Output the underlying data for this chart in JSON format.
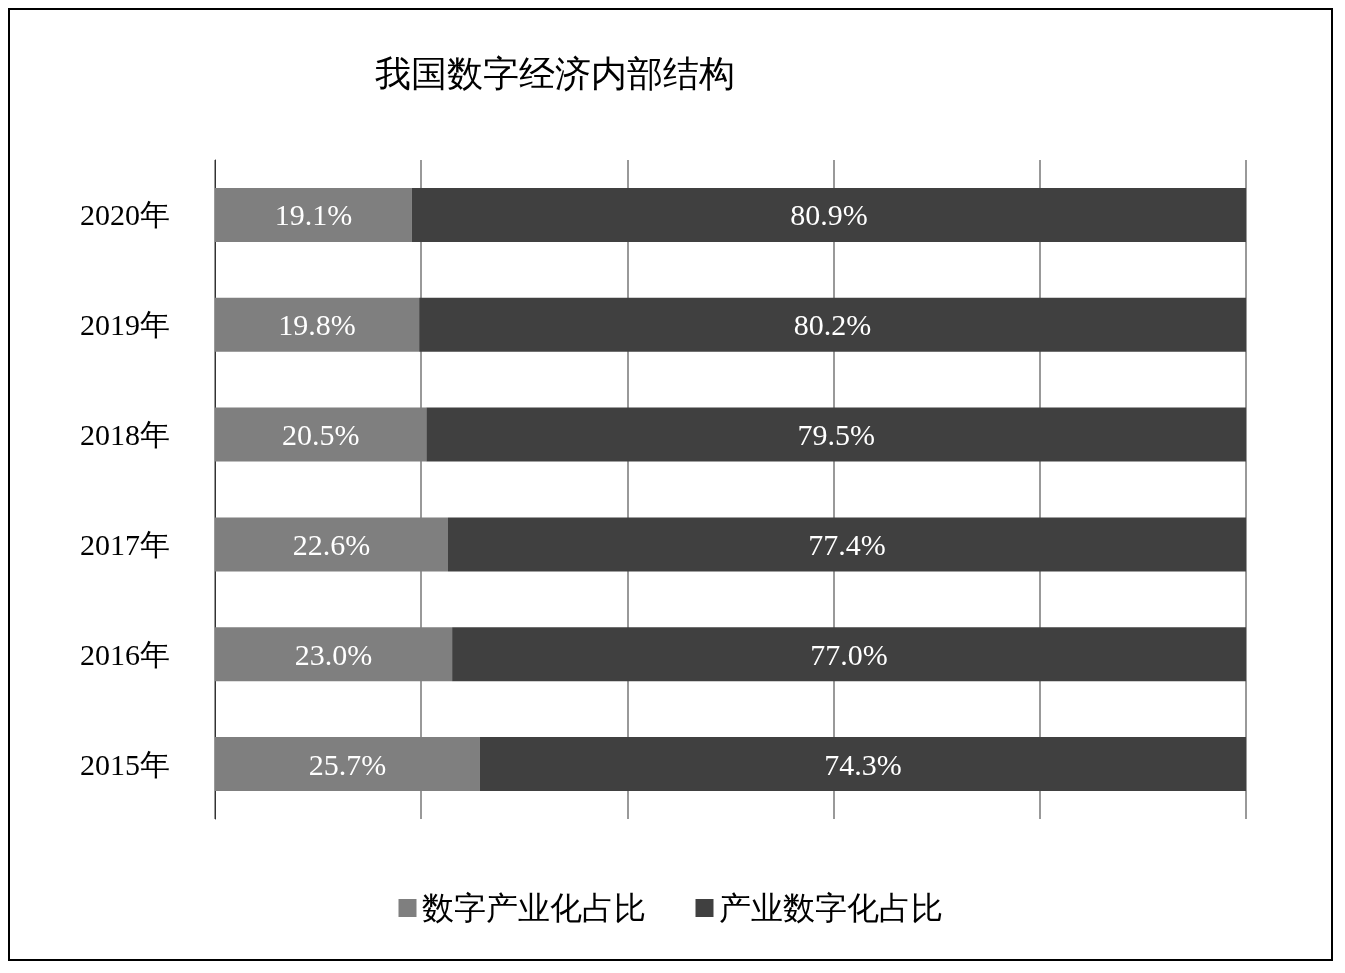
{
  "chart_data": {
    "type": "bar",
    "orientation": "horizontal",
    "stacked": true,
    "title": "我国数字经济内部结构",
    "categories": [
      "2020年",
      "2019年",
      "2018年",
      "2017年",
      "2016年",
      "2015年"
    ],
    "series": [
      {
        "name": "数字产业化占比",
        "color": "#7f7f7f",
        "values": [
          19.1,
          19.8,
          20.5,
          22.6,
          23.0,
          25.7
        ],
        "value_labels": [
          "19.1%",
          "19.8%",
          "20.5%",
          "22.6%",
          "23.0%",
          "25.7%"
        ]
      },
      {
        "name": "产业数字化占比",
        "color": "#404040",
        "values": [
          80.9,
          80.2,
          79.5,
          77.4,
          77.0,
          74.3
        ],
        "value_labels": [
          "80.9%",
          "80.2%",
          "79.5%",
          "77.4%",
          "77.0%",
          "74.3%"
        ]
      }
    ],
    "xlim": [
      0,
      100
    ],
    "xticks": [
      {
        "value": 0,
        "label": null
      },
      {
        "value": 20,
        "label": null
      },
      {
        "value": 40,
        "label": null
      },
      {
        "value": 60,
        "label": null
      },
      {
        "value": 80,
        "label": null
      },
      {
        "value": 100,
        "label": null
      }
    ],
    "tick_labels": "y",
    "grid": "x",
    "legend": "bottom"
  }
}
